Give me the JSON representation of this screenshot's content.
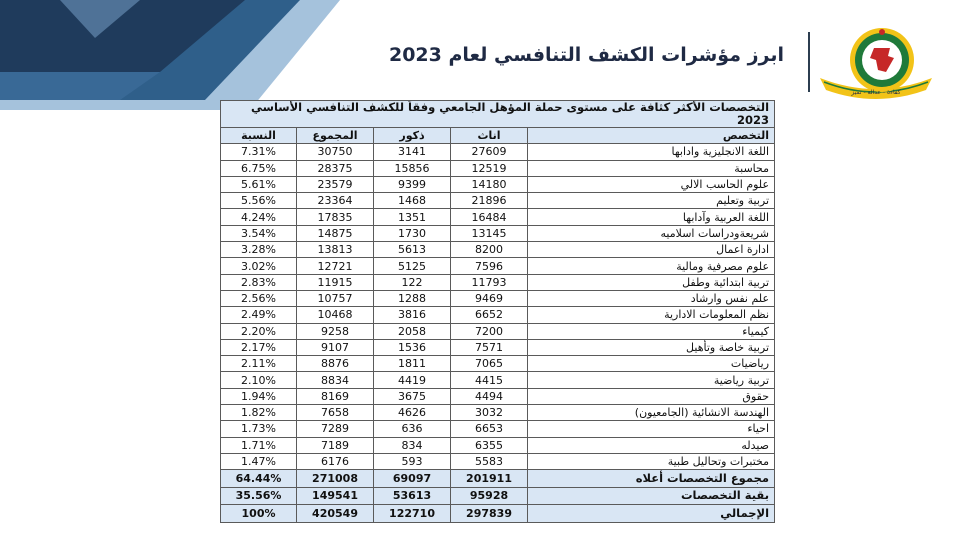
{
  "page_title": "ابرز مؤشرات الكشف التنافسي لعام 2023",
  "logo_text": "الخدمة المدنية",
  "logo_motto": "كفاءة - عدالة - تميز",
  "table": {
    "title": "التخصصات الأكثر كثافة على مستوى حملة المؤهل الجامعي وفقاً للكشف التنافسي الأساسي 2023",
    "headers": {
      "specialty": "التخصص",
      "female": "اناث",
      "male": "ذكور",
      "total": "المجموع",
      "percent": "النسبة"
    },
    "rows": [
      {
        "specialty": "اللغة الانجليزية وادابها",
        "female": "27609",
        "male": "3141",
        "total": "30750",
        "percent": "7.31%"
      },
      {
        "specialty": "محاسبة",
        "female": "12519",
        "male": "15856",
        "total": "28375",
        "percent": "6.75%"
      },
      {
        "specialty": "علوم الحاسب الالي",
        "female": "14180",
        "male": "9399",
        "total": "23579",
        "percent": "5.61%"
      },
      {
        "specialty": "تربية وتعليم",
        "female": "21896",
        "male": "1468",
        "total": "23364",
        "percent": "5.56%"
      },
      {
        "specialty": "اللغة العربية وآدابها",
        "female": "16484",
        "male": "1351",
        "total": "17835",
        "percent": "4.24%"
      },
      {
        "specialty": "شريعةودراسات اسلاميه",
        "female": "13145",
        "male": "1730",
        "total": "14875",
        "percent": "3.54%"
      },
      {
        "specialty": "ادارة اعمال",
        "female": "8200",
        "male": "5613",
        "total": "13813",
        "percent": "3.28%"
      },
      {
        "specialty": "علوم مصرفية ومالية",
        "female": "7596",
        "male": "5125",
        "total": "12721",
        "percent": "3.02%"
      },
      {
        "specialty": "تربية ابتدائية وطفل",
        "female": "11793",
        "male": "122",
        "total": "11915",
        "percent": "2.83%"
      },
      {
        "specialty": "علم نفس وارشاد",
        "female": "9469",
        "male": "1288",
        "total": "10757",
        "percent": "2.56%"
      },
      {
        "specialty": "نظم المعلومات الادارية",
        "female": "6652",
        "male": "3816",
        "total": "10468",
        "percent": "2.49%"
      },
      {
        "specialty": "كيمياء",
        "female": "7200",
        "male": "2058",
        "total": "9258",
        "percent": "2.20%"
      },
      {
        "specialty": "تربية خاصة وتأهيل",
        "female": "7571",
        "male": "1536",
        "total": "9107",
        "percent": "2.17%"
      },
      {
        "specialty": "رياضيات",
        "female": "7065",
        "male": "1811",
        "total": "8876",
        "percent": "2.11%"
      },
      {
        "specialty": "تربية رياضية",
        "female": "4415",
        "male": "4419",
        "total": "8834",
        "percent": "2.10%"
      },
      {
        "specialty": "حقوق",
        "female": "4494",
        "male": "3675",
        "total": "8169",
        "percent": "1.94%"
      },
      {
        "specialty": "الهندسة الانشائية (الجامعيون)",
        "female": "3032",
        "male": "4626",
        "total": "7658",
        "percent": "1.82%"
      },
      {
        "specialty": "احياء",
        "female": "6653",
        "male": "636",
        "total": "7289",
        "percent": "1.73%"
      },
      {
        "specialty": "صيدله",
        "female": "6355",
        "male": "834",
        "total": "7189",
        "percent": "1.71%"
      },
      {
        "specialty": "مختبرات وتحاليل طبية",
        "female": "5583",
        "male": "593",
        "total": "6176",
        "percent": "1.47%"
      }
    ],
    "totals": [
      {
        "specialty": "مجموع التخصصات أعلاه",
        "female": "201911",
        "male": "69097",
        "total": "271008",
        "percent": "64.44%"
      },
      {
        "specialty": "بقية التخصصات",
        "female": "95928",
        "male": "53613",
        "total": "149541",
        "percent": "35.56%"
      },
      {
        "specialty": "الإجمالي",
        "female": "297839",
        "male": "122710",
        "total": "420549",
        "percent": "100%"
      }
    ]
  },
  "colors": {
    "header_fill": "#d9e6f4",
    "title_text": "#1f2a44",
    "corner_dark": "#1f3b5c",
    "corner_mid": "#2f5f8a",
    "corner_light": "#5b8fbf",
    "logo_gold": "#f2c318",
    "logo_green": "#1f7a3a",
    "logo_red": "#c62828"
  }
}
